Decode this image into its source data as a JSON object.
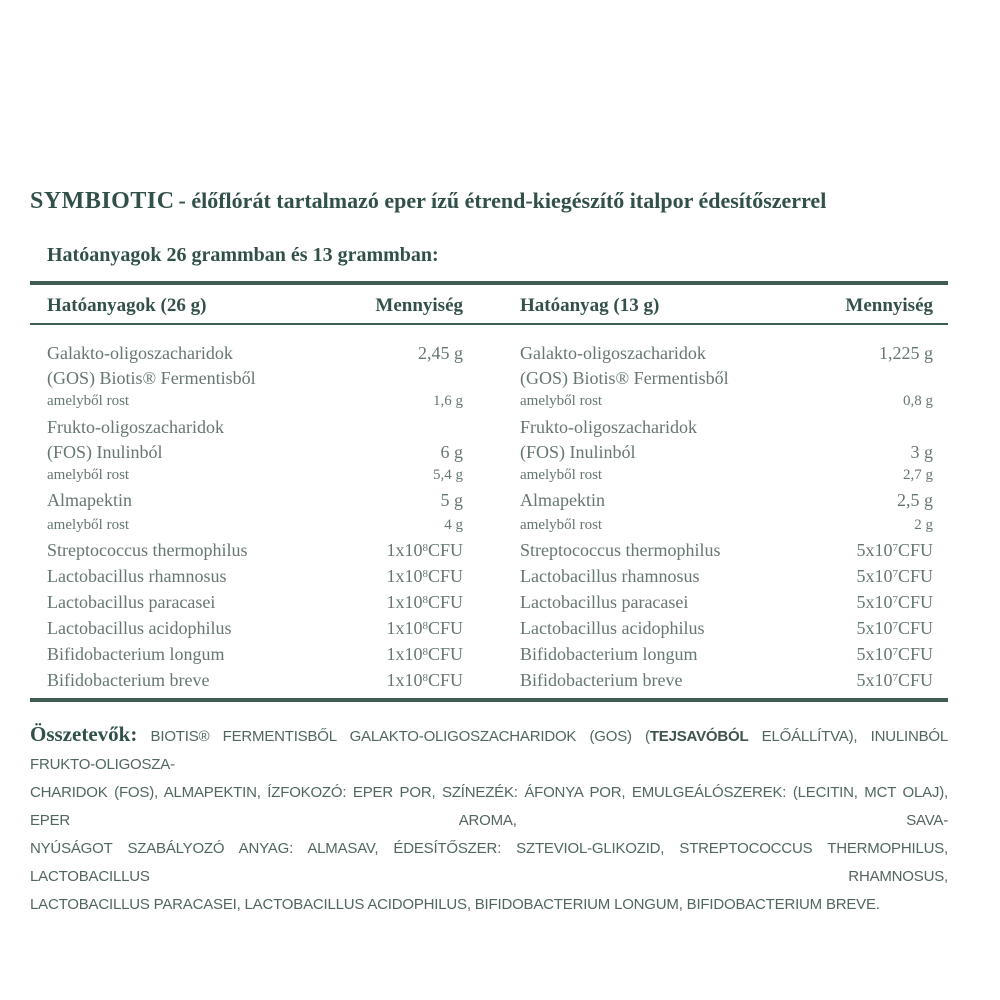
{
  "header": {
    "brand": "SYMBIOTIC",
    "title_rest": "- élőflórát tartalmazó eper ízű étrend-kiegészítő italpor édesítőszerrel",
    "subtitle": "Hatóanyagok 26 grammban és 13 grammban:"
  },
  "table": {
    "headers": {
      "left_name": "Hatóanyagok (26 g)",
      "left_qty": "Mennyiség",
      "right_name": "Hatóanyag (13 g)",
      "right_qty": "Mennyiség"
    },
    "left_rows": [
      {
        "line1": "Galakto-oligoszacharidok",
        "line2": "(GOS) Biotis® Fermentisből",
        "v": {
          "p": "2,45 g",
          "s": "",
          "u": ""
        }
      },
      {
        "line1": "amelyből rost",
        "v": {
          "p": "1,6 g",
          "s": "",
          "u": ""
        }
      },
      {
        "line1": "Frukto-oligoszacharidok",
        "line2": "(FOS) Inulinból",
        "v": {
          "p": "6 g",
          "s": "",
          "u": ""
        }
      },
      {
        "line1": "amelyből rost",
        "v": {
          "p": "5,4 g",
          "s": "",
          "u": ""
        }
      },
      {
        "line1": "Almapektin",
        "v": {
          "p": "5 g",
          "s": "",
          "u": ""
        }
      },
      {
        "line1": "amelyből rost",
        "v": {
          "p": "4 g",
          "s": "",
          "u": ""
        }
      },
      {
        "line1": "Streptococcus thermophilus",
        "v": {
          "p": "1x10",
          "s": "8",
          "u": "CFU"
        }
      },
      {
        "line1": "Lactobacillus rhamnosus",
        "v": {
          "p": "1x10",
          "s": "8",
          "u": "CFU"
        }
      },
      {
        "line1": "Lactobacillus paracasei",
        "v": {
          "p": "1x10",
          "s": "8",
          "u": "CFU"
        }
      },
      {
        "line1": "Lactobacillus acidophilus",
        "v": {
          "p": "1x10",
          "s": "8",
          "u": "CFU"
        }
      },
      {
        "line1": "Bifidobacterium longum",
        "v": {
          "p": "1x10",
          "s": "8",
          "u": "CFU"
        }
      },
      {
        "line1": "Bifidobacterium breve",
        "v": {
          "p": "1x10",
          "s": "8",
          "u": "CFU"
        }
      }
    ],
    "right_rows": [
      {
        "line1": "Galakto-oligoszacharidok",
        "line2": "(GOS) Biotis® Fermentisből",
        "v": {
          "p": "1,225 g",
          "s": "",
          "u": ""
        }
      },
      {
        "line1": "amelyből rost",
        "v": {
          "p": "0,8 g",
          "s": "",
          "u": ""
        }
      },
      {
        "line1": "Frukto-oligoszacharidok",
        "line2": "(FOS) Inulinból",
        "v": {
          "p": "3 g",
          "s": "",
          "u": ""
        }
      },
      {
        "line1": "amelyből rost",
        "v": {
          "p": "2,7 g",
          "s": "",
          "u": ""
        }
      },
      {
        "line1": "Almapektin",
        "v": {
          "p": "2,5 g",
          "s": "",
          "u": ""
        }
      },
      {
        "line1": "amelyből rost",
        "v": {
          "p": "2 g",
          "s": "",
          "u": ""
        }
      },
      {
        "line1": "Streptococcus thermophilus",
        "v": {
          "p": "5x10",
          "s": "7",
          "u": "CFU"
        }
      },
      {
        "line1": "Lactobacillus rhamnosus",
        "v": {
          "p": "5x10",
          "s": "7",
          "u": "CFU"
        }
      },
      {
        "line1": "Lactobacillus paracasei",
        "v": {
          "p": "5x10",
          "s": "7",
          "u": "CFU"
        }
      },
      {
        "line1": "Lactobacillus acidophilus",
        "v": {
          "p": "5x10",
          "s": "7",
          "u": "CFU"
        }
      },
      {
        "line1": "Bifidobacterium longum",
        "v": {
          "p": "5x10",
          "s": "7",
          "u": "CFU"
        }
      },
      {
        "line1": "Bifidobacterium breve",
        "v": {
          "p": "5x10",
          "s": "7",
          "u": "CFU"
        }
      }
    ]
  },
  "ingredients": {
    "label": "Összetevők:",
    "line1_pre": " BIOTIS® FERMENTISBŐL GALAKTO-OLIGOSZACHARIDOK (GOS) (",
    "line1_bold": "TEJSAVÓBÓL",
    "line1_post": " ELŐÁLLÍTVA), INULINBÓL FRUKTO-OLIGOSZA-",
    "line2": "CHARIDOK (FOS), ALMAPEKTIN, ÍZFOKOZÓ: EPER POR, SZÍNEZÉK: ÁFONYA POR, EMULGEÁLÓSZEREK: (LECITIN, MCT OLAJ), EPER AROMA, SAVA-",
    "line3": "NYÚSÁGOT SZABÁLYOZÓ ANYAG: ALMASAV, ÉDESÍTŐSZER: SZTEVIOL-GLIKOZID, STREPTOCOCCUS THERMOPHILUS, LACTOBACILLUS RHAMNOSUS,",
    "line4": "LACTOBACILLUS PARACASEI, LACTOBACILLUS ACIDOPHILUS, BIFIDOBACTERIUM LONGUM, BIFIDOBACTERIUM BREVE."
  },
  "colors": {
    "heading": "#32504a",
    "body_text": "#66776f",
    "border": "#3f5b52",
    "paragraph": "#51665f"
  }
}
